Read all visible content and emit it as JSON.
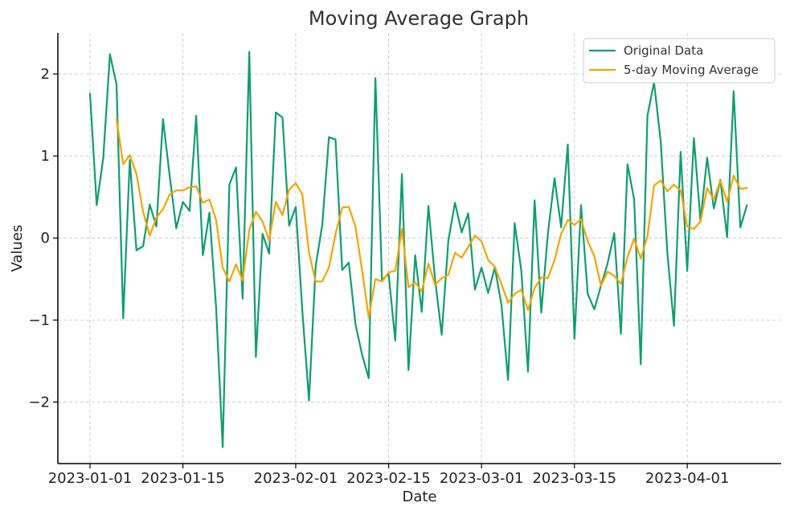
{
  "chart_data": {
    "type": "line",
    "title": "Moving Average Graph",
    "xlabel": "Date",
    "ylabel": "Values",
    "x_ticks": [
      "2023-01-01",
      "2023-01-15",
      "2023-02-01",
      "2023-02-15",
      "2023-03-01",
      "2023-03-15",
      "2023-04-01"
    ],
    "y_ticks": [
      2,
      1,
      0,
      -1,
      -2
    ],
    "y_tick_labels": [
      "2",
      "1",
      "0",
      "−1",
      "−2"
    ],
    "xlim": [
      "2023-01-01",
      "2023-04-10"
    ],
    "ylim": [
      -2.75,
      2.5
    ],
    "grid": true,
    "legend_position": "top-right",
    "series": [
      {
        "name": "Original Data",
        "color": "#0f9d72",
        "values": [
          1.76,
          0.4,
          0.98,
          2.24,
          1.87,
          -0.98,
          0.95,
          -0.15,
          -0.1,
          0.41,
          0.14,
          1.45,
          0.76,
          0.12,
          0.44,
          0.33,
          1.49,
          -0.21,
          0.31,
          -0.85,
          -2.55,
          0.65,
          0.86,
          -0.74,
          2.27,
          -1.45,
          0.05,
          -0.19,
          1.53,
          1.47,
          0.15,
          0.38,
          -0.89,
          -1.98,
          -0.35,
          0.16,
          1.23,
          1.2,
          -0.39,
          -0.3,
          -1.05,
          -1.42,
          -1.71,
          1.95,
          -0.51,
          -0.44,
          -1.25,
          0.78,
          -1.61,
          -0.21,
          -0.9,
          0.39,
          -0.51,
          -1.18,
          -0.03,
          0.43,
          0.07,
          0.3,
          -0.63,
          -0.36,
          -0.67,
          -0.36,
          -0.81,
          -1.73,
          0.18,
          -0.4,
          -1.63,
          0.46,
          -0.91,
          0.05,
          0.73,
          0.13,
          1.14,
          -1.23,
          0.4,
          -0.68,
          -0.87,
          -0.58,
          -0.31,
          0.06,
          -1.17,
          0.9,
          0.47,
          -1.54,
          1.49,
          1.9,
          1.18,
          -0.18,
          -1.07,
          1.05,
          -0.4,
          1.22,
          0.21,
          0.98,
          0.36,
          0.71,
          0.01,
          1.79,
          0.13,
          0.4
        ]
      },
      {
        "name": "5-day Moving Average",
        "color": "#f5a300",
        "values": [
          null,
          null,
          null,
          null,
          1.45,
          0.9,
          1.01,
          0.78,
          0.32,
          0.03,
          0.25,
          0.35,
          0.53,
          0.58,
          0.58,
          0.62,
          0.63,
          0.43,
          0.47,
          0.22,
          -0.36,
          -0.53,
          -0.32,
          -0.52,
          0.1,
          0.32,
          0.2,
          -0.03,
          0.44,
          0.28,
          0.59,
          0.67,
          0.53,
          -0.18,
          -0.53,
          -0.53,
          -0.36,
          0.05,
          0.37,
          0.38,
          0.14,
          -0.39,
          -0.97,
          -0.5,
          -0.53,
          -0.42,
          -0.4,
          0.11,
          -0.6,
          -0.54,
          -0.65,
          -0.31,
          -0.57,
          -0.49,
          -0.45,
          -0.18,
          -0.24,
          -0.11,
          0.03,
          -0.04,
          -0.27,
          -0.35,
          -0.56,
          -0.79,
          -0.68,
          -0.63,
          -0.88,
          -0.61,
          -0.48,
          -0.49,
          -0.27,
          0.05,
          0.22,
          0.16,
          0.23,
          -0.04,
          -0.22,
          -0.58,
          -0.41,
          -0.46,
          -0.56,
          -0.23,
          -0.01,
          -0.25,
          0.02,
          0.64,
          0.7,
          0.57,
          0.65,
          0.58,
          0.14,
          0.11,
          0.2,
          0.61,
          0.47,
          0.7,
          0.44,
          0.76,
          0.6,
          0.61
        ]
      }
    ]
  }
}
